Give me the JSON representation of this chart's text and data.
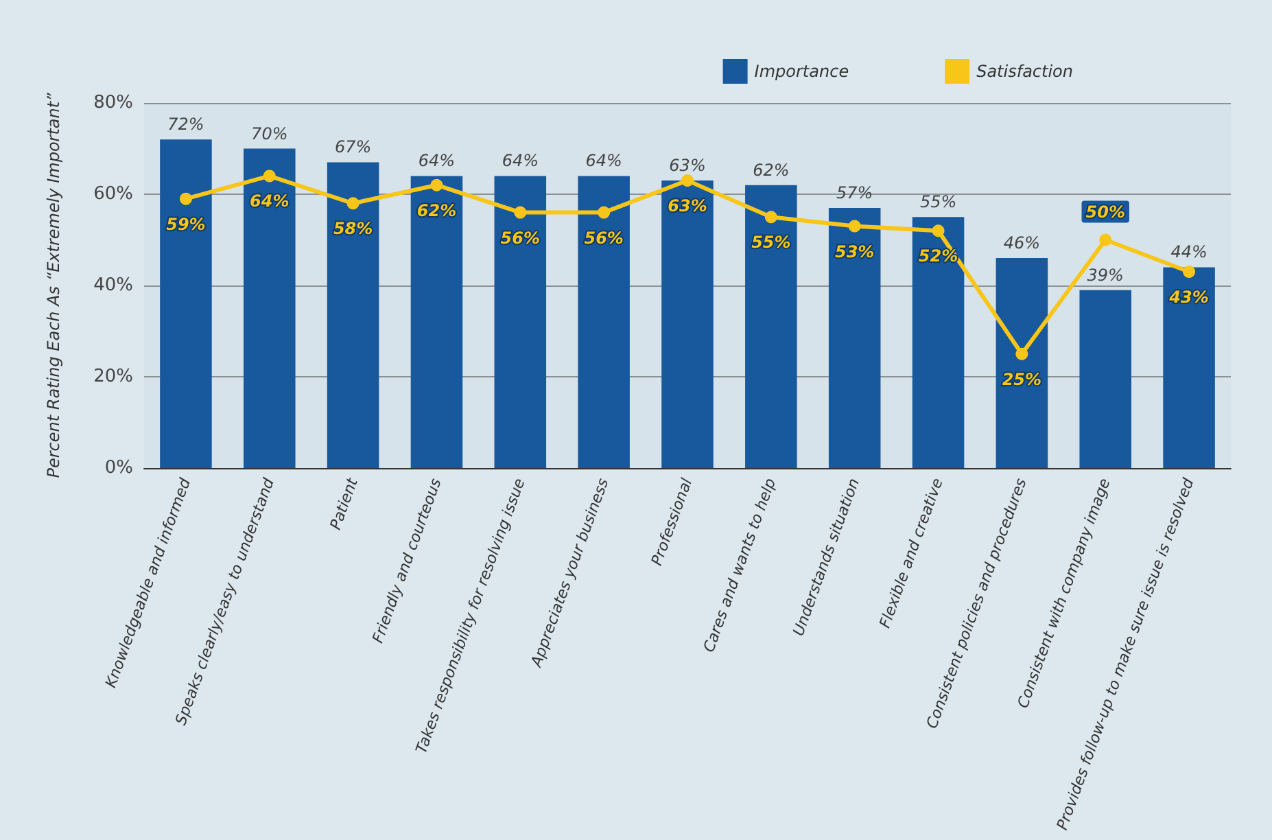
{
  "chart_data": {
    "type": "bar",
    "ylabel": "Percent Rating Each As “Extremely Important”",
    "categories": [
      "Knowledgeable and informed",
      "Speaks clearly/easy to understand",
      "Patient",
      "Friendly and courteous",
      "Takes responsibility for resolving issue",
      "Appreciates your business",
      "Professional",
      "Cares and wants to help",
      "Understands situation",
      "Flexible and creative",
      "Consistent policies and procedures",
      "Consistent with company image",
      "Provides follow-up to make sure issue is resolved"
    ],
    "series": [
      {
        "name": "Importance",
        "color": "#18589c",
        "values": [
          72,
          70,
          67,
          64,
          64,
          64,
          63,
          62,
          57,
          55,
          46,
          39,
          44
        ],
        "value_labels": [
          "72%",
          "70%",
          "67%",
          "64%",
          "64%",
          "64%",
          "63%",
          "62%",
          "57%",
          "55%",
          "46%",
          "39%",
          "44%"
        ]
      },
      {
        "name": "Satisfaction",
        "type": "line",
        "color": "#f7c619",
        "values": [
          59,
          64,
          58,
          62,
          56,
          56,
          63,
          55,
          53,
          52,
          25,
          50,
          43
        ],
        "value_labels": [
          "59%",
          "64%",
          "58%",
          "62%",
          "56%",
          "56%",
          "63%",
          "55%",
          "53%",
          "52%",
          "25%",
          "50%",
          "43%"
        ]
      }
    ],
    "ylim": [
      0,
      80
    ],
    "yticks": [
      {
        "value": 0,
        "label": "0%"
      },
      {
        "value": 20,
        "label": "20%"
      },
      {
        "value": 40,
        "label": "40%"
      },
      {
        "value": 60,
        "label": "60%"
      },
      {
        "value": 80,
        "label": "80%"
      }
    ],
    "grid": "y",
    "legend": "top right",
    "marker": "circle"
  }
}
